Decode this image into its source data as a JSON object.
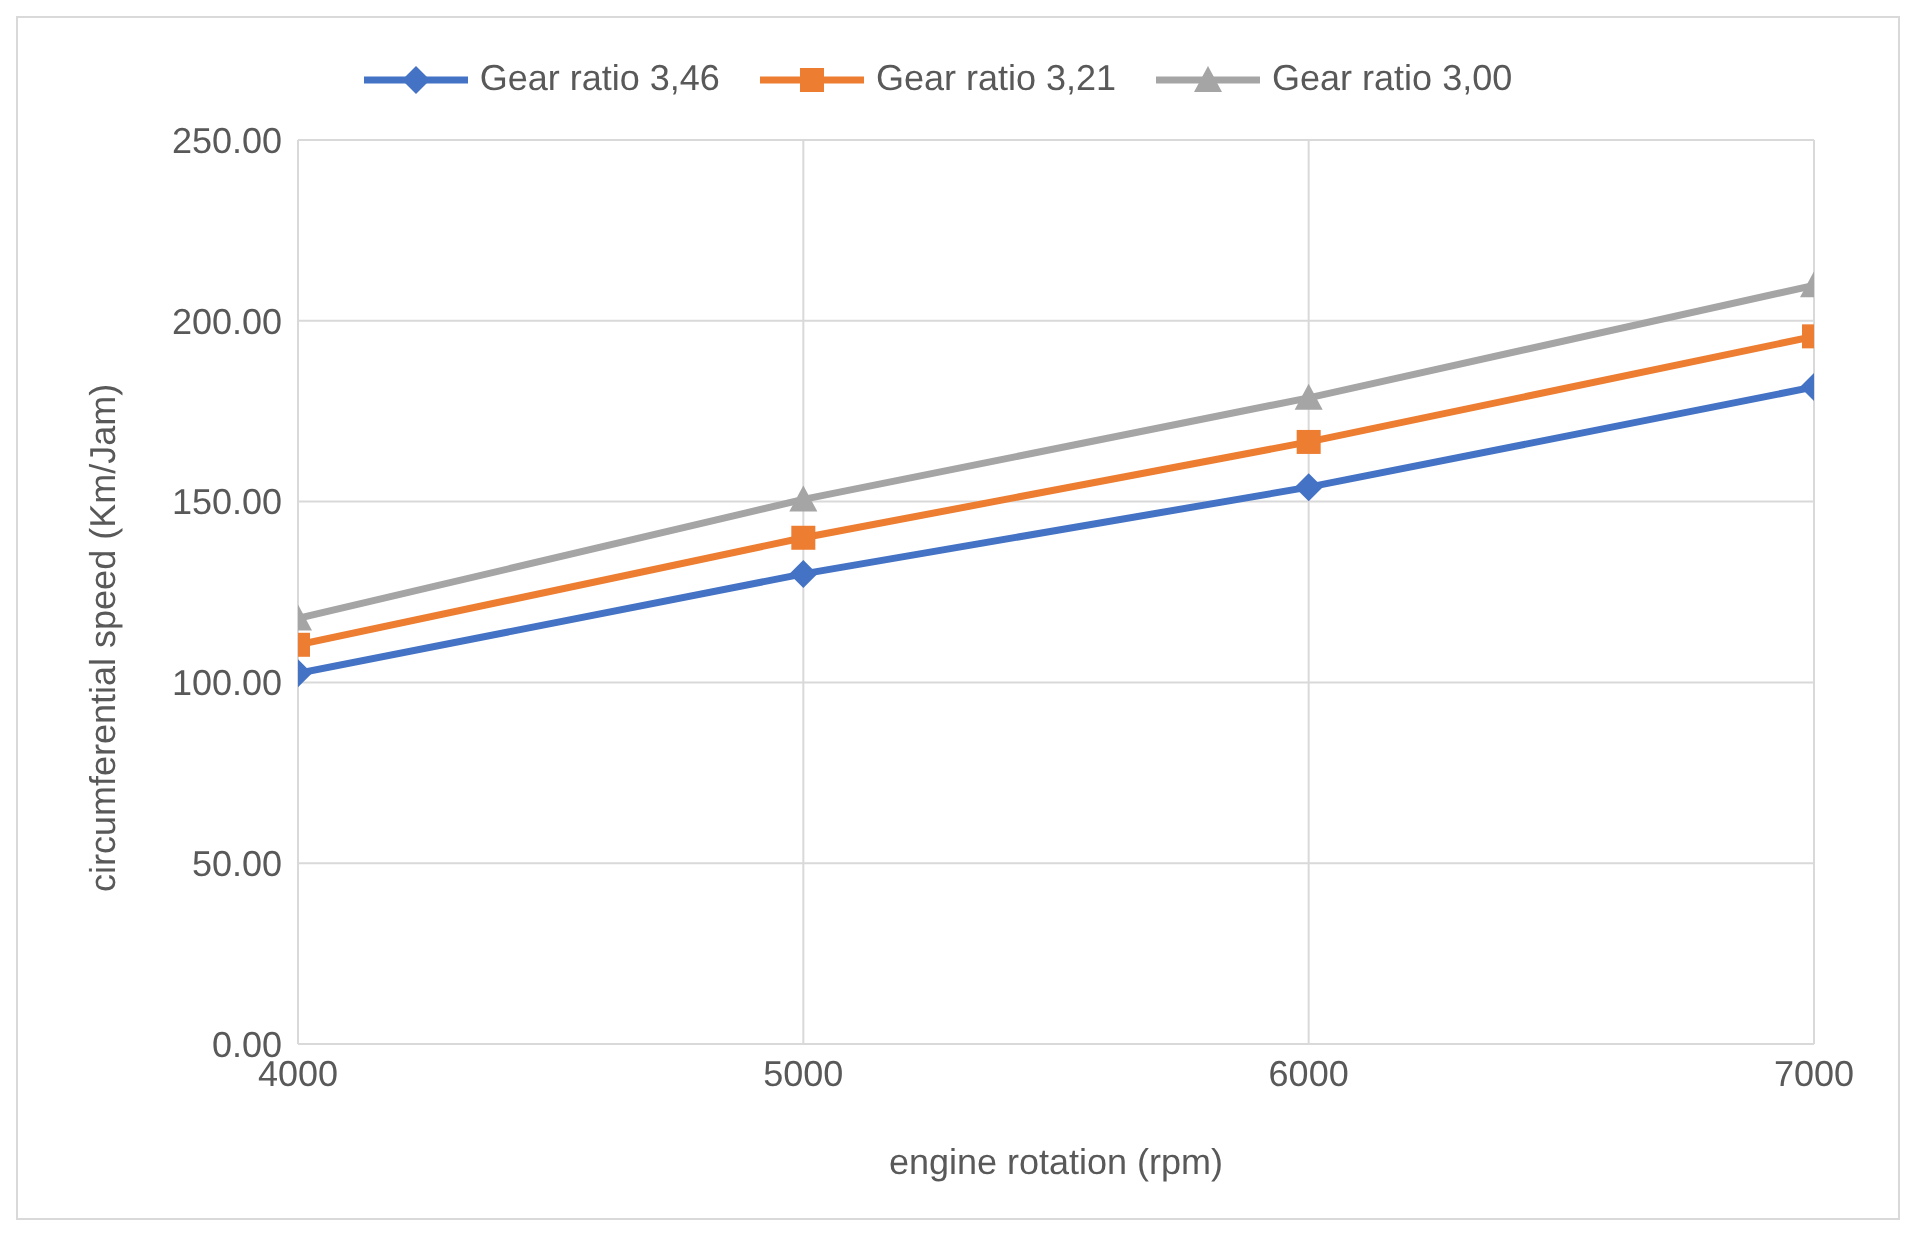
{
  "chart_data": {
    "type": "line",
    "xlabel": "engine rotation (rpm)",
    "ylabel": "circumferential speed (Km/Jam)",
    "x": [
      4000,
      5000,
      6000,
      7000
    ],
    "series": [
      {
        "name": "Gear ratio 3,46",
        "color": "#4472c4",
        "marker": "diamond",
        "values": [
          102.5,
          130,
          154,
          181.7
        ]
      },
      {
        "name": "Gear ratio 3,21",
        "color": "#ed7d31",
        "marker": "square",
        "values": [
          110.4,
          140,
          166.5,
          195.7
        ]
      },
      {
        "name": "Gear ratio 3,00",
        "color": "#a5a5a5",
        "marker": "triangle",
        "values": [
          117.7,
          150.6,
          178.7,
          209.8
        ]
      }
    ],
    "xlim": [
      4000,
      7000
    ],
    "xticks": [
      4000,
      5000,
      6000,
      7000
    ],
    "ylim": [
      0,
      250
    ],
    "yticks": [
      {
        "value": 0,
        "label": "0.00"
      },
      {
        "value": 50,
        "label": "50.00"
      },
      {
        "value": 100,
        "label": "100.00"
      },
      {
        "value": 150,
        "label": "150.00"
      },
      {
        "value": 200,
        "label": "200.00"
      },
      {
        "value": 250,
        "label": "250.00"
      }
    ],
    "grid": true,
    "legend": "top",
    "line_style": "solid"
  }
}
